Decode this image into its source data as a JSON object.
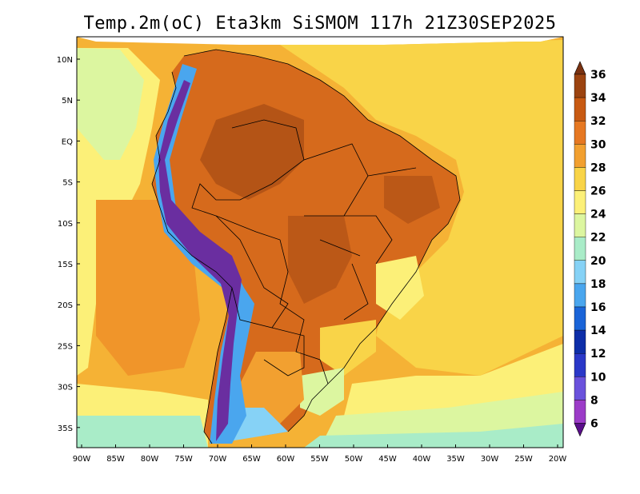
{
  "title": "Temp.2m(oC) Eta3km SiSMOM 117h 21Z30SEP2025",
  "lat_labels": [
    "10N",
    "5N",
    "EQ",
    "5S",
    "10S",
    "15S",
    "20S",
    "25S",
    "30S",
    "35S"
  ],
  "lon_labels": [
    "90W",
    "85W",
    "80W",
    "75W",
    "70W",
    "65W",
    "60W",
    "55W",
    "50W",
    "45W",
    "40W",
    "35W",
    "30W",
    "25W",
    "20W"
  ],
  "colorbar": {
    "labels": [
      "36",
      "34",
      "32",
      "30",
      "28",
      "26",
      "24",
      "22",
      "20",
      "18",
      "16",
      "14",
      "12",
      "10",
      "8",
      "6"
    ],
    "colors": [
      "#7a3211",
      "#9c4410",
      "#c85a12",
      "#e67822",
      "#f2a030",
      "#f9d448",
      "#fcf078",
      "#dcf6a0",
      "#a9ecc8",
      "#86d2f6",
      "#4aa6ee",
      "#1a64d8",
      "#0d2ea8",
      "#2a38c8",
      "#6a52dc",
      "#9c3cc8",
      "#5a0e8a"
    ]
  },
  "colors": {
    "ocean_warm": "#f5b235",
    "ocean_hot": "#f0952a",
    "land_hot": "#d66a1c",
    "land_very_hot": "#a84d14",
    "highlands": "#d8f2a0",
    "andes_cold": "#4aa6ee",
    "andes_very_cold": "#6a2ea0",
    "south_ocean": "#9ee6d8",
    "border_line": "#000000"
  }
}
